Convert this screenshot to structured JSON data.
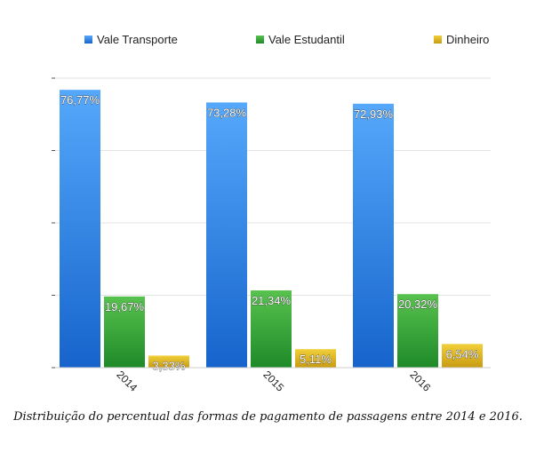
{
  "chart_data": {
    "type": "bar",
    "categories": [
      "2014",
      "2015",
      "2016"
    ],
    "series": [
      {
        "name": "Vale Transporte",
        "values": [
          76.77,
          73.28,
          72.93
        ],
        "labels": [
          "76,77%",
          "73,28%",
          "72,93%"
        ],
        "color": "#2f86e8"
      },
      {
        "name": "Vale Estudantil",
        "values": [
          19.67,
          21.34,
          20.32
        ],
        "labels": [
          "19,67%",
          "21,34%",
          "20,32%"
        ],
        "color": "#3aa23a"
      },
      {
        "name": "Dinheiro",
        "values": [
          3.33,
          5.11,
          6.54
        ],
        "labels": [
          "3,33%",
          "5,11%",
          "6,54%"
        ],
        "color": "#e0b422"
      }
    ],
    "ylim": [
      0,
      80
    ],
    "grid": true,
    "legend_position": "top"
  },
  "caption": "Distribuição do percentual das formas de pagamento de passagens entre 2014 e 2016."
}
